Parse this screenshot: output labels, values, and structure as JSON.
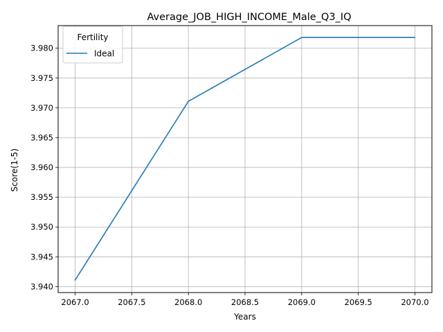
{
  "chart_data": {
    "type": "line",
    "title": "Average_JOB_HIGH_INCOME_Male_Q3_IQ",
    "xlabel": "Years",
    "ylabel": "Score(1-5)",
    "xlim": [
      2066.85,
      2070.15
    ],
    "ylim": [
      3.939,
      3.9838
    ],
    "xticks": [
      2067.0,
      2067.5,
      2068.0,
      2068.5,
      2069.0,
      2069.5,
      2070.0
    ],
    "xtick_labels": [
      "2067.0",
      "2067.5",
      "2068.0",
      "2068.5",
      "2069.0",
      "2069.5",
      "2070.0"
    ],
    "yticks": [
      3.94,
      3.945,
      3.95,
      3.955,
      3.96,
      3.965,
      3.97,
      3.975,
      3.98
    ],
    "ytick_labels": [
      "3.940",
      "3.945",
      "3.950",
      "3.955",
      "3.960",
      "3.965",
      "3.970",
      "3.975",
      "3.980"
    ],
    "grid": true,
    "legend": {
      "title": "Fertility",
      "position": "top-left"
    },
    "x": [
      2067,
      2068,
      2069,
      2070
    ],
    "series": [
      {
        "name": "Ideal",
        "color": "#1f77b4",
        "values": [
          3.9411,
          3.9711,
          3.9818,
          3.9818
        ]
      }
    ]
  }
}
